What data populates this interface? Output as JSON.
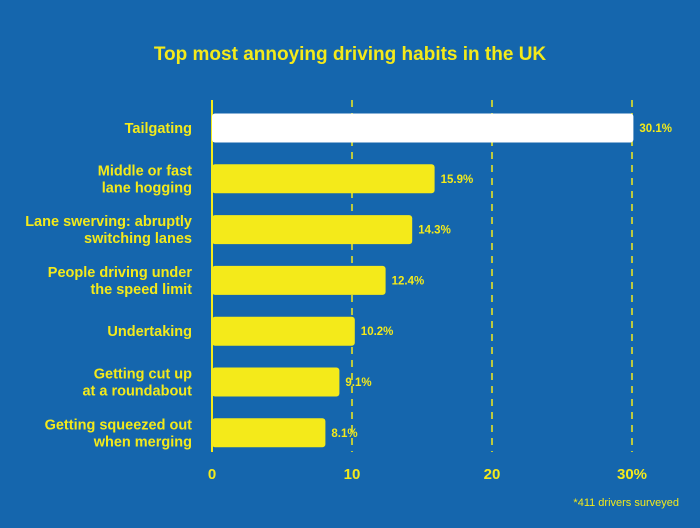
{
  "chart_data": {
    "type": "bar",
    "orientation": "horizontal",
    "title": "Top most annoying driving habits in the UK",
    "categories": [
      [
        "Tailgating"
      ],
      [
        "Middle or fast",
        "lane hogging"
      ],
      [
        "Lane swerving: abruptly",
        "switching lanes"
      ],
      [
        "People driving under",
        "the speed limit"
      ],
      [
        "Undertaking"
      ],
      [
        "Getting cut up",
        "at a roundabout"
      ],
      [
        "Getting squeezed out",
        "when merging"
      ]
    ],
    "values": [
      30.1,
      15.9,
      14.3,
      12.4,
      10.2,
      9.1,
      8.1
    ],
    "value_labels": [
      "30.1%",
      "15.9%",
      "14.3%",
      "12.4%",
      "10.2%",
      "9.1%",
      "8.1%"
    ],
    "xlim": [
      0,
      30
    ],
    "xticks": [
      0,
      10,
      20,
      30
    ],
    "xtick_labels": [
      "0",
      "10",
      "20",
      "30%"
    ],
    "grid": "vertical dashed",
    "footnote": "*411 drivers surveyed"
  },
  "colors": {
    "background": "#1566ad",
    "accent": "#f4ea1a",
    "highlight_bar": "#ffffff"
  }
}
